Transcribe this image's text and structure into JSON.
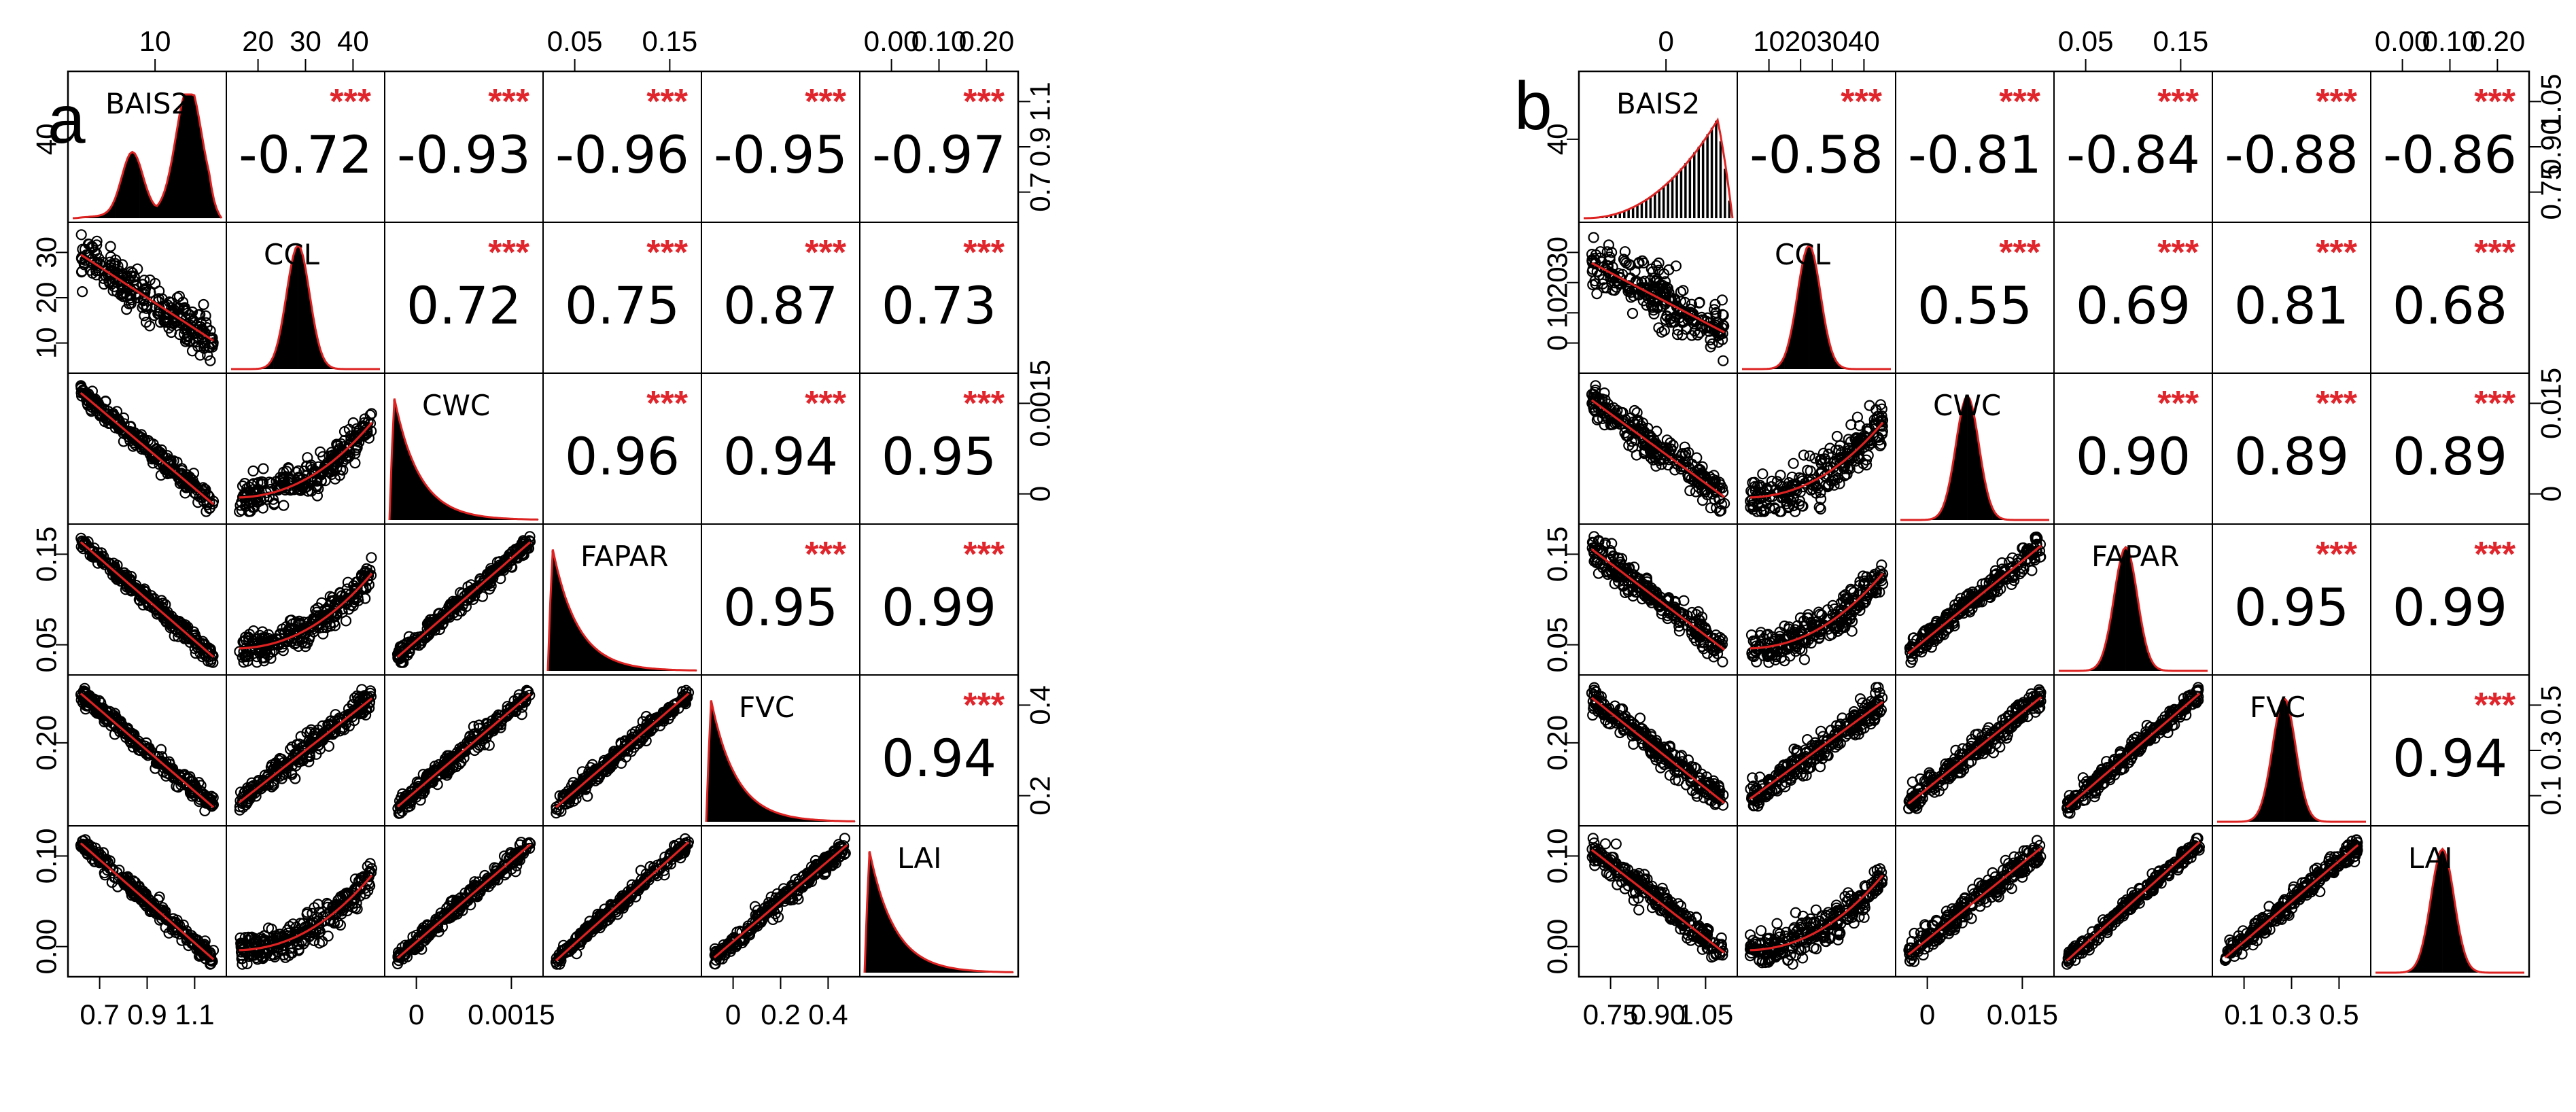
{
  "chart_data": [
    {
      "type": "scatter-matrix",
      "panel_label": "a",
      "variables": [
        "BAIS2",
        "CCL",
        "CWC",
        "FAPAR",
        "FVC",
        "LAI"
      ],
      "correlations": [
        [
          "-0.72",
          "-0.93",
          "-0.96",
          "-0.95",
          "-0.97"
        ],
        [
          "0.72",
          "0.75",
          "0.87",
          "0.73"
        ],
        [
          "0.96",
          "0.94",
          "0.95"
        ],
        [
          "0.95",
          "0.99"
        ],
        [
          "0.94"
        ]
      ],
      "significance": "***",
      "axis_ticks": {
        "top": [
          [
            "10"
          ],
          [
            "20",
            "30",
            "40"
          ],
          [],
          [
            "0.05",
            "0.15"
          ],
          [],
          [
            "0.00",
            "0.10",
            "0.20"
          ]
        ],
        "bottom": [
          [
            "0.7",
            "0.9",
            "1.1"
          ],
          [],
          [
            "0",
            "0.0015"
          ],
          [],
          [
            "0",
            "0.2",
            "0.4"
          ],
          []
        ],
        "left": [
          [
            "40"
          ],
          [
            "10",
            "20",
            "30"
          ],
          [],
          [
            "0.05",
            "0.15"
          ],
          [
            "0.20"
          ],
          [
            "0.00",
            "0.10"
          ]
        ],
        "right": [
          [
            "0.7",
            "0.9",
            "1.1"
          ],
          [],
          [
            "0",
            "0.0015"
          ],
          [],
          [
            "0.2",
            "0.4"
          ],
          []
        ]
      },
      "histogram_shapes": [
        "left-skewed",
        "normal",
        "right-skewed",
        "right-skewed",
        "right-skewed",
        "right-skewed"
      ],
      "scatter_relations": [
        [],
        [
          -0.72
        ],
        [
          -0.93,
          0.72
        ],
        [
          -0.96,
          0.75,
          0.96
        ],
        [
          -0.95,
          0.87,
          0.94,
          0.95
        ],
        [
          -0.97,
          0.73,
          0.95,
          0.99,
          0.94
        ]
      ]
    },
    {
      "type": "scatter-matrix",
      "panel_label": "b",
      "variables": [
        "BAIS2",
        "CCL",
        "CWC",
        "FAPAR",
        "FVC",
        "LAI"
      ],
      "correlations": [
        [
          "-0.58",
          "-0.81",
          "-0.84",
          "-0.88",
          "-0.86"
        ],
        [
          "0.55",
          "0.69",
          "0.81",
          "0.68"
        ],
        [
          "0.90",
          "0.89",
          "0.89"
        ],
        [
          "0.95",
          "0.99"
        ],
        [
          "0.94"
        ]
      ],
      "significance": "***",
      "axis_ticks": {
        "top": [
          [
            "0"
          ],
          [
            "10",
            "20",
            "30",
            "40"
          ],
          [],
          [
            "0.05",
            "0.15"
          ],
          [],
          [
            "0.00",
            "0.10",
            "0.20"
          ]
        ],
        "bottom": [
          [
            "0.75",
            "0.90",
            "1.05"
          ],
          [],
          [
            "0",
            "0.015"
          ],
          [],
          [
            "0.1",
            "0.3",
            "0.5"
          ],
          []
        ],
        "left": [
          [
            "40"
          ],
          [
            "0",
            "10",
            "20",
            "30"
          ],
          [],
          [
            "0.05",
            "0.15"
          ],
          [
            "0.20"
          ],
          [
            "0.00",
            "0.10"
          ]
        ],
        "right": [
          [
            "0.75",
            "0.90",
            "1.05"
          ],
          [],
          [
            "0",
            "0.015"
          ],
          [],
          [
            "0.1",
            "0.3",
            "0.5"
          ],
          []
        ]
      },
      "histogram_shapes": [
        "left-skewed-bars",
        "normal",
        "normal",
        "normal",
        "normal",
        "normal"
      ],
      "scatter_relations": [
        [],
        [
          -0.58
        ],
        [
          -0.81,
          0.55
        ],
        [
          -0.84,
          0.69,
          0.9
        ],
        [
          -0.88,
          0.81,
          0.89,
          0.95
        ],
        [
          -0.86,
          0.68,
          0.89,
          0.99,
          0.94
        ]
      ]
    }
  ]
}
